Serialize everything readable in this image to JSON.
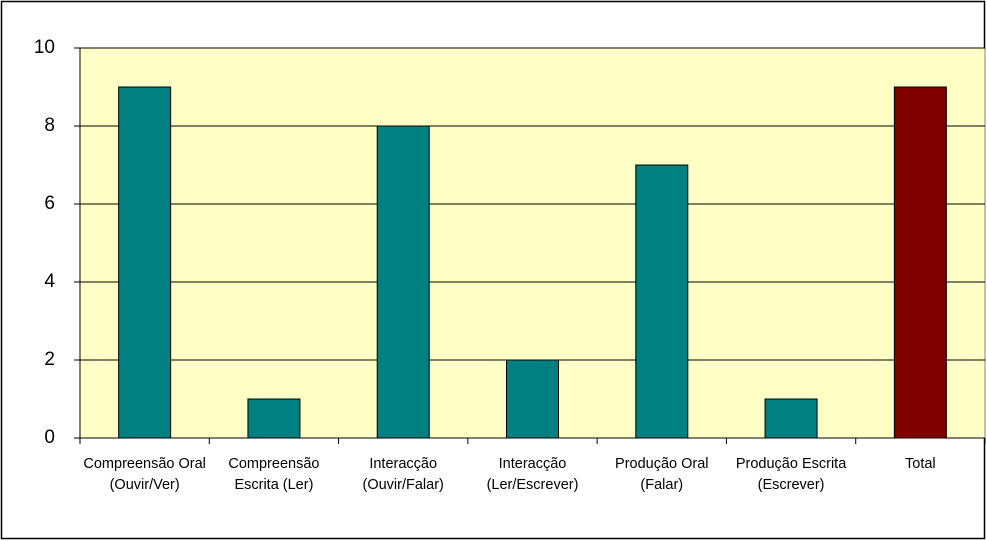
{
  "chart_data": {
    "type": "bar",
    "categories": [
      "Compreensão Oral (Ouvir/Ver)",
      "Compreensão Escrita (Ler)",
      "Interacção (Ouvir/Falar)",
      "Interacção (Ler/Escrever)",
      "Produção Oral (Falar)",
      "Produção Escrita (Escrever)",
      "Total"
    ],
    "values": [
      9,
      1,
      8,
      2,
      7,
      1,
      9
    ],
    "colors": [
      "#008080",
      "#008080",
      "#008080",
      "#008080",
      "#008080",
      "#008080",
      "#800000"
    ],
    "ylim": [
      0,
      10
    ],
    "yticks": [
      0,
      2,
      4,
      6,
      8,
      10
    ],
    "grid": true
  }
}
